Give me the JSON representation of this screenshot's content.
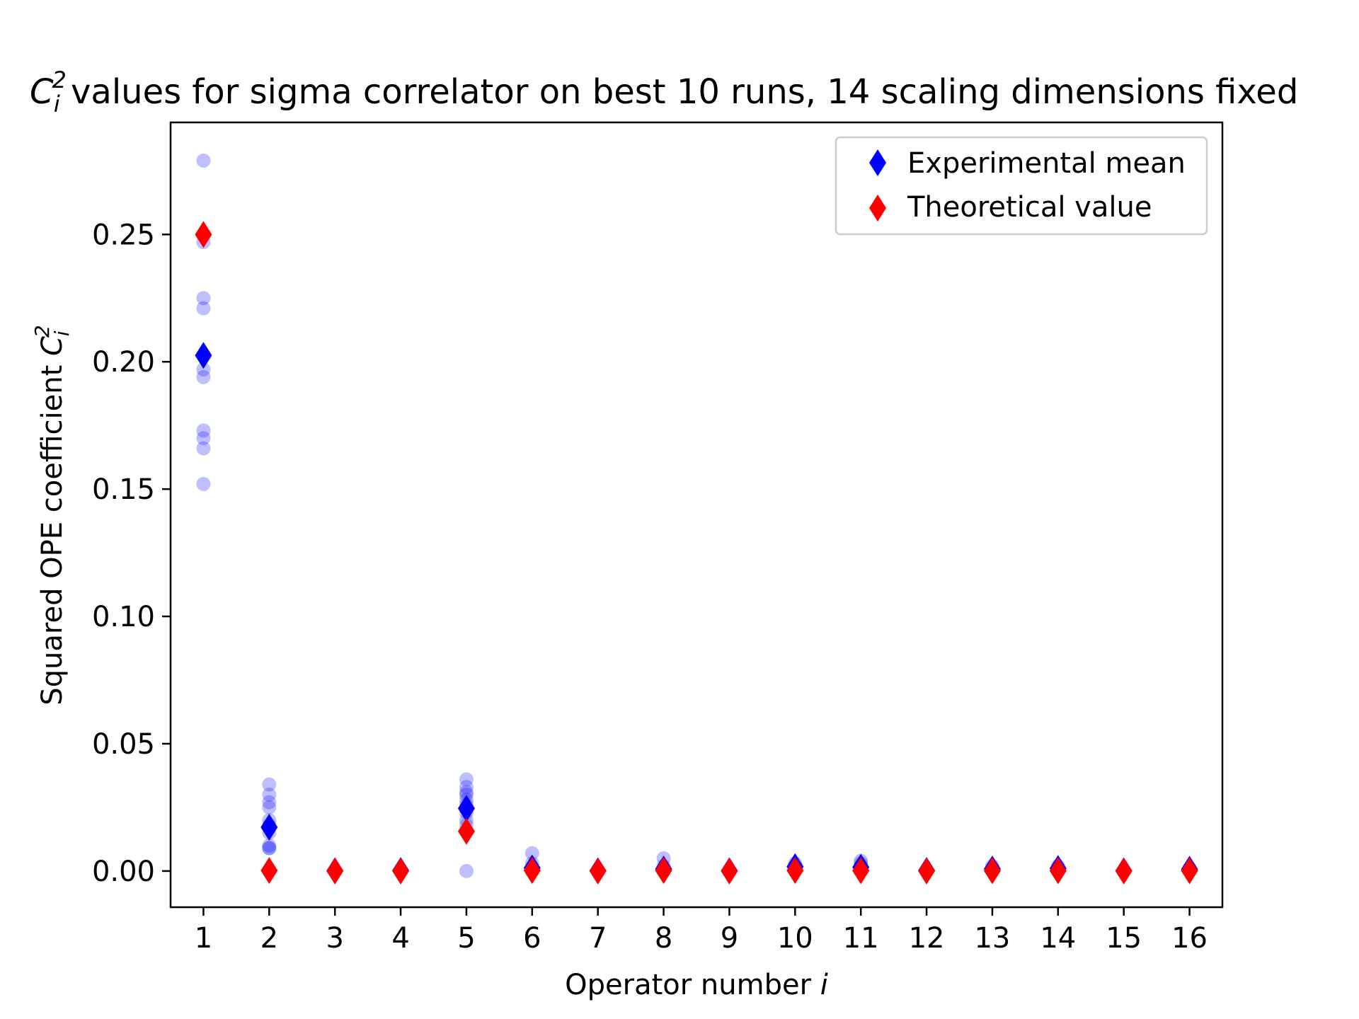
{
  "chart_data": {
    "type": "scatter",
    "title": {
      "main": "C",
      "sub": "i",
      "sup": "2",
      "rest": " values for sigma correlator on best 10 runs, 14 scaling dimensions fixed"
    },
    "xlabel": {
      "text": "Operator number ",
      "var": "i"
    },
    "ylabel": {
      "text": "Squared OPE coefficient ",
      "var": "C",
      "sub": "i",
      "sup": "2"
    },
    "x_ticks": [
      "1",
      "2",
      "3",
      "4",
      "5",
      "6",
      "7",
      "8",
      "9",
      "10",
      "11",
      "12",
      "13",
      "14",
      "15",
      "16"
    ],
    "y_ticks": [
      "0.00",
      "0.05",
      "0.10",
      "0.15",
      "0.20",
      "0.25"
    ],
    "y_tick_values": [
      0.0,
      0.05,
      0.1,
      0.15,
      0.2,
      0.25
    ],
    "xlim": [
      0.5,
      16.5
    ],
    "ylim": [
      -0.0142,
      0.294
    ],
    "grid": false,
    "legend_position": "top-right",
    "colors": {
      "runs": "#0000ff",
      "mean": "#0000ff",
      "theory": "#ff0000"
    },
    "runs": [
      {
        "i": 1,
        "values": [
          0.279,
          0.247,
          0.225,
          0.221,
          0.197,
          0.194,
          0.173,
          0.17,
          0.166,
          0.152
        ]
      },
      {
        "i": 2,
        "values": [
          0.034,
          0.03,
          0.027,
          0.025,
          0.02,
          0.018,
          0.015,
          0.01,
          0.009,
          0.009
        ]
      },
      {
        "i": 3,
        "values": [
          0.0,
          0.0,
          0.0
        ]
      },
      {
        "i": 4,
        "values": [
          0.0,
          0.0
        ]
      },
      {
        "i": 5,
        "values": [
          0.036,
          0.033,
          0.031,
          0.03,
          0.028,
          0.026,
          0.023,
          0.02,
          0.018,
          0.0
        ]
      },
      {
        "i": 6,
        "values": [
          0.007,
          0.003,
          0.001,
          0.0
        ]
      },
      {
        "i": 7,
        "values": [
          0.0,
          0.0
        ]
      },
      {
        "i": 8,
        "values": [
          0.005,
          0.002,
          0.0
        ]
      },
      {
        "i": 9,
        "values": [
          0.0,
          0.0
        ]
      },
      {
        "i": 10,
        "values": [
          0.003,
          0.002,
          0.001
        ]
      },
      {
        "i": 11,
        "values": [
          0.004,
          0.003,
          0.002,
          0.001
        ]
      },
      {
        "i": 12,
        "values": [
          0.0,
          0.0
        ]
      },
      {
        "i": 13,
        "values": [
          0.002,
          0.001
        ]
      },
      {
        "i": 14,
        "values": [
          0.002,
          0.001
        ]
      },
      {
        "i": 15,
        "values": [
          0.0,
          0.0
        ]
      },
      {
        "i": 16,
        "values": [
          0.001,
          0.001
        ]
      }
    ],
    "series": [
      {
        "name": "Experimental mean",
        "x": [
          1,
          2,
          3,
          4,
          5,
          6,
          7,
          8,
          9,
          10,
          11,
          12,
          13,
          14,
          15,
          16
        ],
        "values": [
          0.2025,
          0.0172,
          0.0001,
          0.0002,
          0.0246,
          0.0012,
          0.0001,
          0.0008,
          0.0001,
          0.0017,
          0.0015,
          0.0002,
          0.0008,
          0.001,
          0.0001,
          0.0007
        ]
      },
      {
        "name": "Theoretical value",
        "x": [
          1,
          2,
          3,
          4,
          5,
          6,
          7,
          8,
          9,
          10,
          11,
          12,
          13,
          14,
          15,
          16
        ],
        "values": [
          0.25,
          0.0002,
          0.0,
          0.0,
          0.0156,
          0.0002,
          0.0,
          0.0002,
          0.0,
          0.0002,
          0.0001,
          0.0,
          0.0001,
          0.0001,
          0.0,
          0.0001
        ]
      }
    ]
  }
}
